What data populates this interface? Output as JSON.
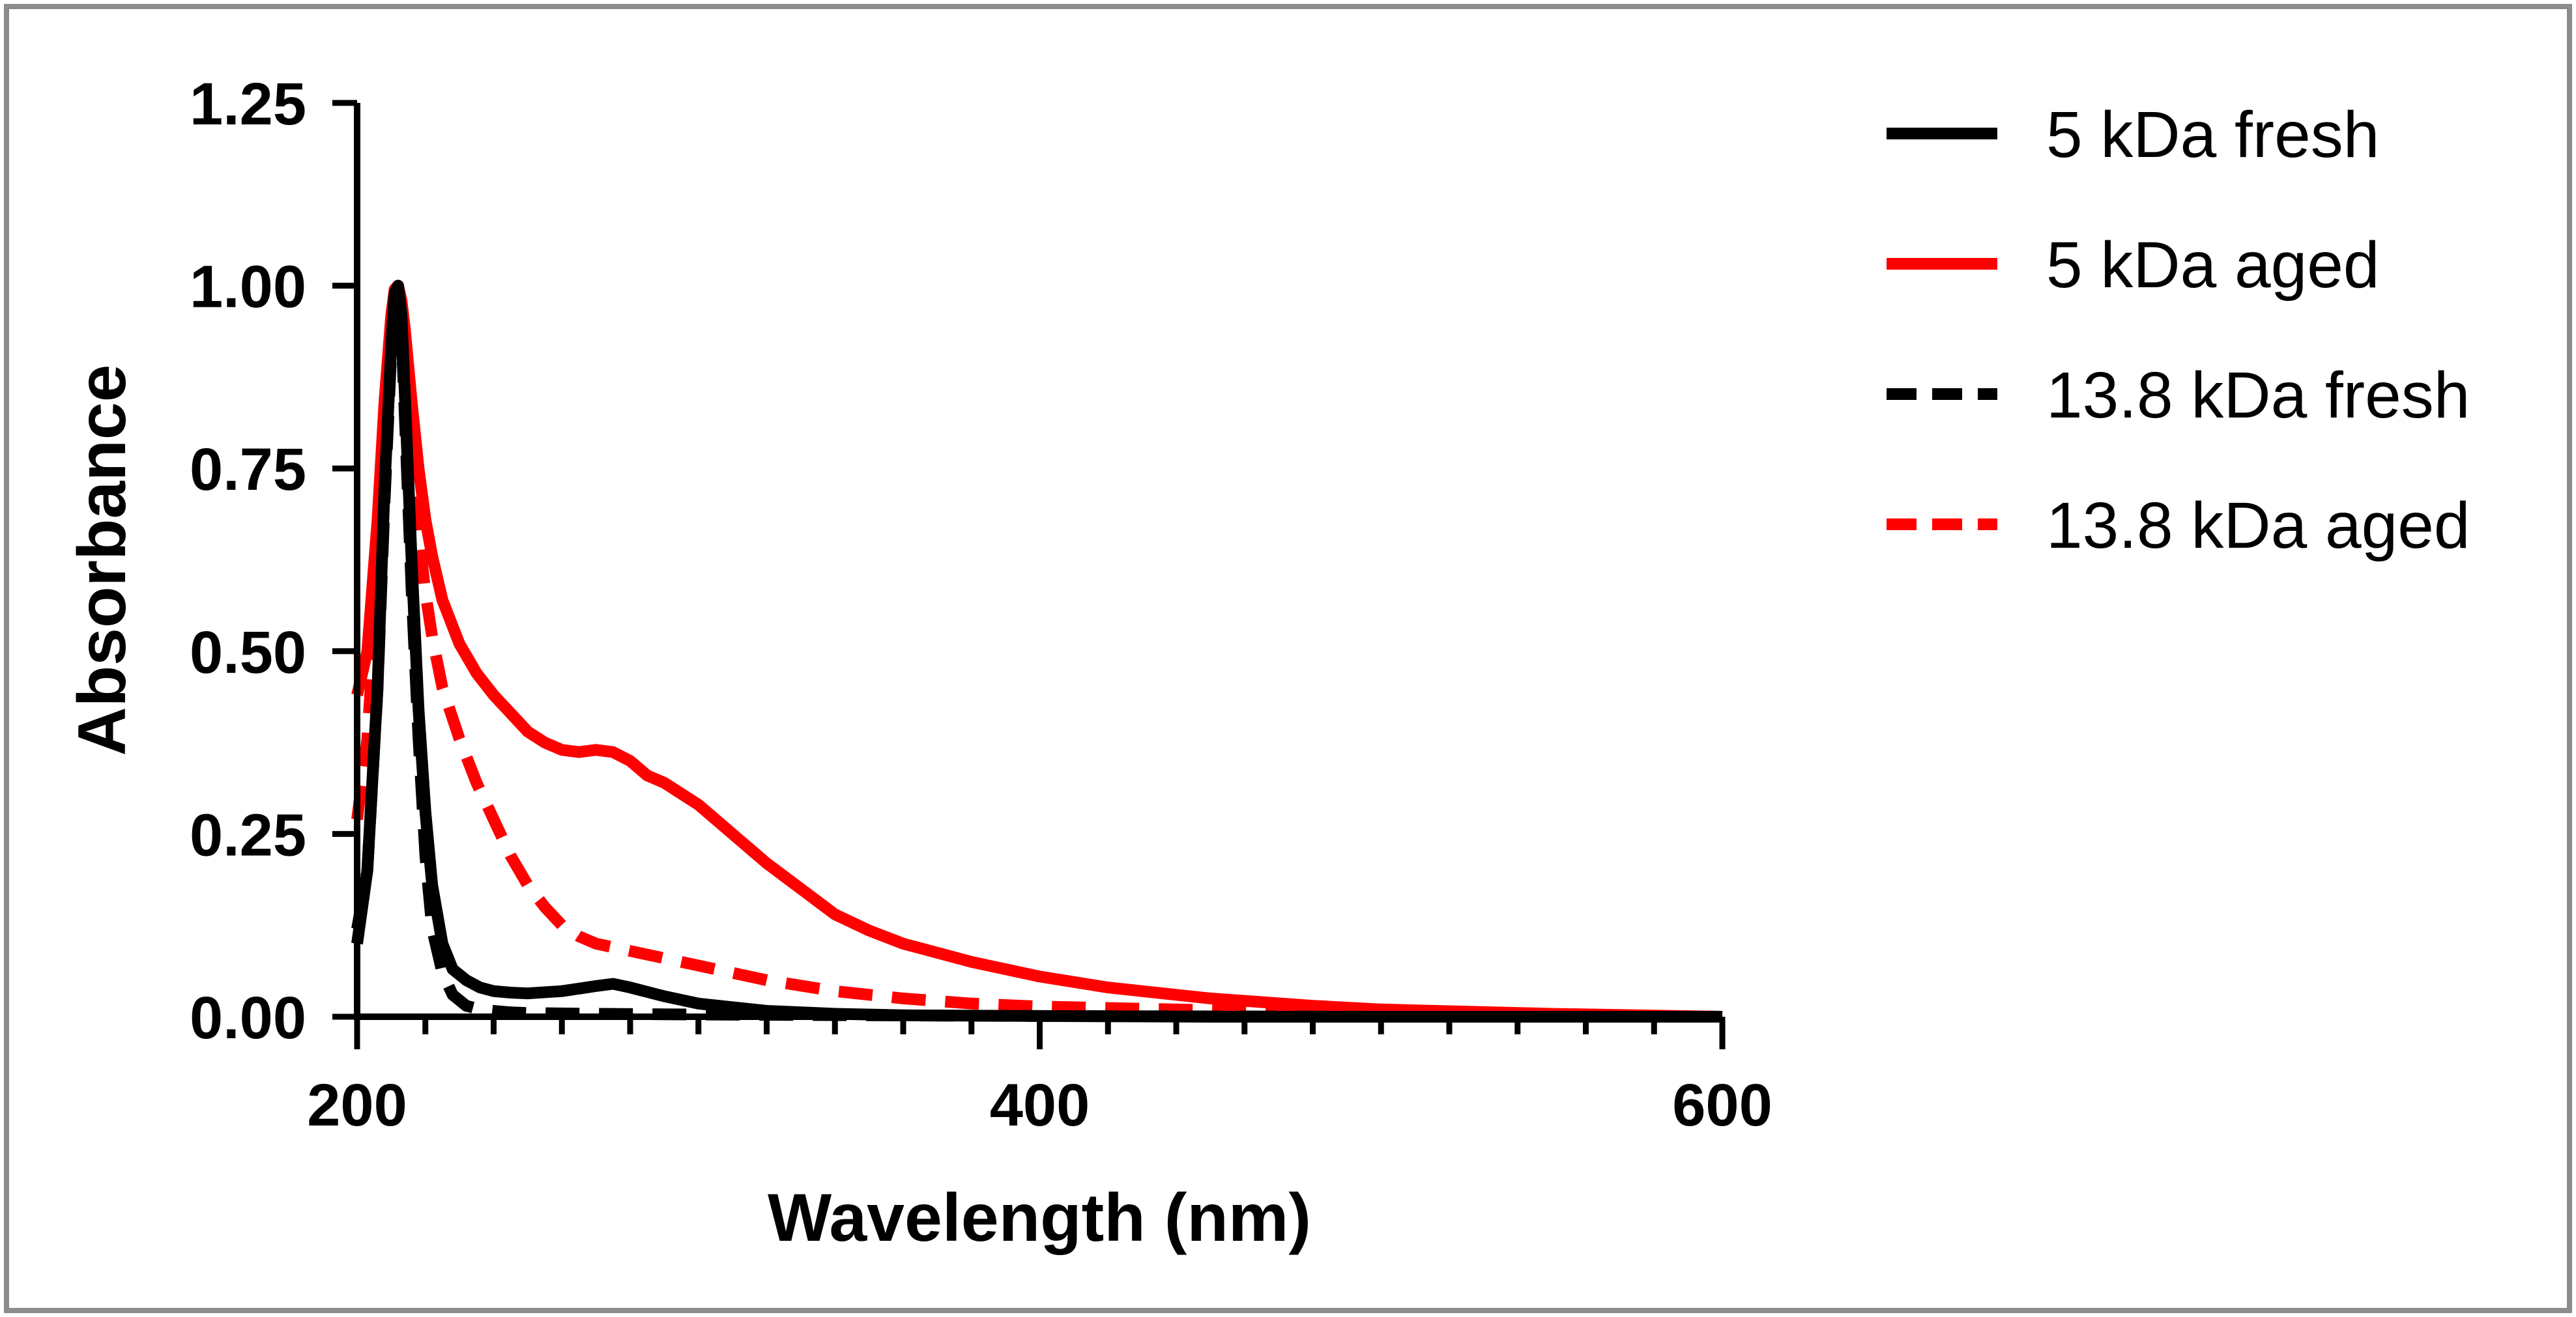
{
  "chart_data": {
    "type": "line",
    "title": "",
    "xlabel": "Wavelength (nm)",
    "ylabel": "Absorbance",
    "xlim": [
      200,
      600
    ],
    "ylim": [
      0,
      1.25
    ],
    "x_ticks": [
      200,
      400,
      600
    ],
    "x_tick_labels": [
      "200",
      "400",
      "600"
    ],
    "x_minor_step": 20,
    "y_ticks": [
      0,
      0.25,
      0.5,
      0.75,
      1.0,
      1.25
    ],
    "y_tick_labels": [
      "0.00",
      "0.25",
      "0.50",
      "0.75",
      "1.00",
      "1.25"
    ],
    "grid": false,
    "legend_position": "right",
    "series": [
      {
        "name": "5 kDa fresh",
        "color": "#000000",
        "style": "solid",
        "x": [
          200,
          203,
          206,
          208,
          210,
          211,
          212,
          213,
          214,
          216,
          218,
          220,
          222,
          225,
          228,
          232,
          236,
          240,
          245,
          250,
          260,
          270,
          275,
          280,
          290,
          300,
          320,
          340,
          360,
          400,
          450,
          500,
          550,
          600
        ],
        "y": [
          0.1,
          0.2,
          0.45,
          0.72,
          0.92,
          0.99,
          1.0,
          0.96,
          0.85,
          0.62,
          0.42,
          0.28,
          0.18,
          0.1,
          0.065,
          0.05,
          0.04,
          0.035,
          0.033,
          0.032,
          0.035,
          0.042,
          0.045,
          0.04,
          0.028,
          0.018,
          0.008,
          0.004,
          0.002,
          0.001,
          0.0,
          0.0,
          0.0,
          0.0
        ]
      },
      {
        "name": "5 kDa aged",
        "color": "#ff0000",
        "style": "solid",
        "x": [
          200,
          203,
          206,
          208,
          210,
          211,
          212,
          213,
          214,
          216,
          218,
          220,
          222,
          225,
          230,
          235,
          240,
          245,
          250,
          255,
          260,
          265,
          270,
          275,
          280,
          285,
          290,
          300,
          310,
          320,
          330,
          340,
          350,
          360,
          380,
          400,
          420,
          450,
          480,
          500,
          550,
          600
        ],
        "y": [
          0.44,
          0.5,
          0.68,
          0.84,
          0.96,
          0.995,
          1.0,
          0.98,
          0.94,
          0.84,
          0.75,
          0.68,
          0.63,
          0.57,
          0.51,
          0.47,
          0.44,
          0.415,
          0.39,
          0.375,
          0.365,
          0.362,
          0.365,
          0.362,
          0.35,
          0.33,
          0.32,
          0.29,
          0.25,
          0.21,
          0.175,
          0.14,
          0.118,
          0.1,
          0.075,
          0.055,
          0.04,
          0.025,
          0.015,
          0.01,
          0.004,
          0.0
        ]
      },
      {
        "name": "13.8 kDa fresh",
        "color": "#000000",
        "style": "dashed",
        "x": [
          200,
          203,
          206,
          208,
          210,
          211,
          212,
          213,
          214,
          216,
          218,
          220,
          222,
          225,
          228,
          232,
          236,
          240,
          245,
          250,
          270,
          300,
          400,
          500,
          600
        ],
        "y": [
          0.12,
          0.2,
          0.45,
          0.7,
          0.91,
          0.98,
          0.99,
          0.94,
          0.82,
          0.58,
          0.38,
          0.22,
          0.12,
          0.06,
          0.03,
          0.015,
          0.01,
          0.008,
          0.006,
          0.005,
          0.004,
          0.003,
          0.001,
          0.0,
          0.0
        ]
      },
      {
        "name": "13.8 kDa aged",
        "color": "#ff0000",
        "style": "dashed",
        "x": [
          200,
          203,
          206,
          208,
          210,
          211,
          212,
          213,
          214,
          216,
          218,
          220,
          222,
          225,
          230,
          235,
          240,
          245,
          250,
          255,
          260,
          265,
          270,
          280,
          300,
          320,
          340,
          360,
          380,
          400,
          450,
          500,
          550,
          600
        ],
        "y": [
          0.27,
          0.38,
          0.6,
          0.8,
          0.95,
          0.99,
          1.0,
          0.96,
          0.88,
          0.75,
          0.66,
          0.58,
          0.52,
          0.45,
          0.38,
          0.32,
          0.27,
          0.22,
          0.18,
          0.15,
          0.125,
          0.11,
          0.1,
          0.09,
          0.07,
          0.05,
          0.035,
          0.025,
          0.018,
          0.014,
          0.009,
          0.005,
          0.002,
          0.0
        ]
      }
    ]
  }
}
